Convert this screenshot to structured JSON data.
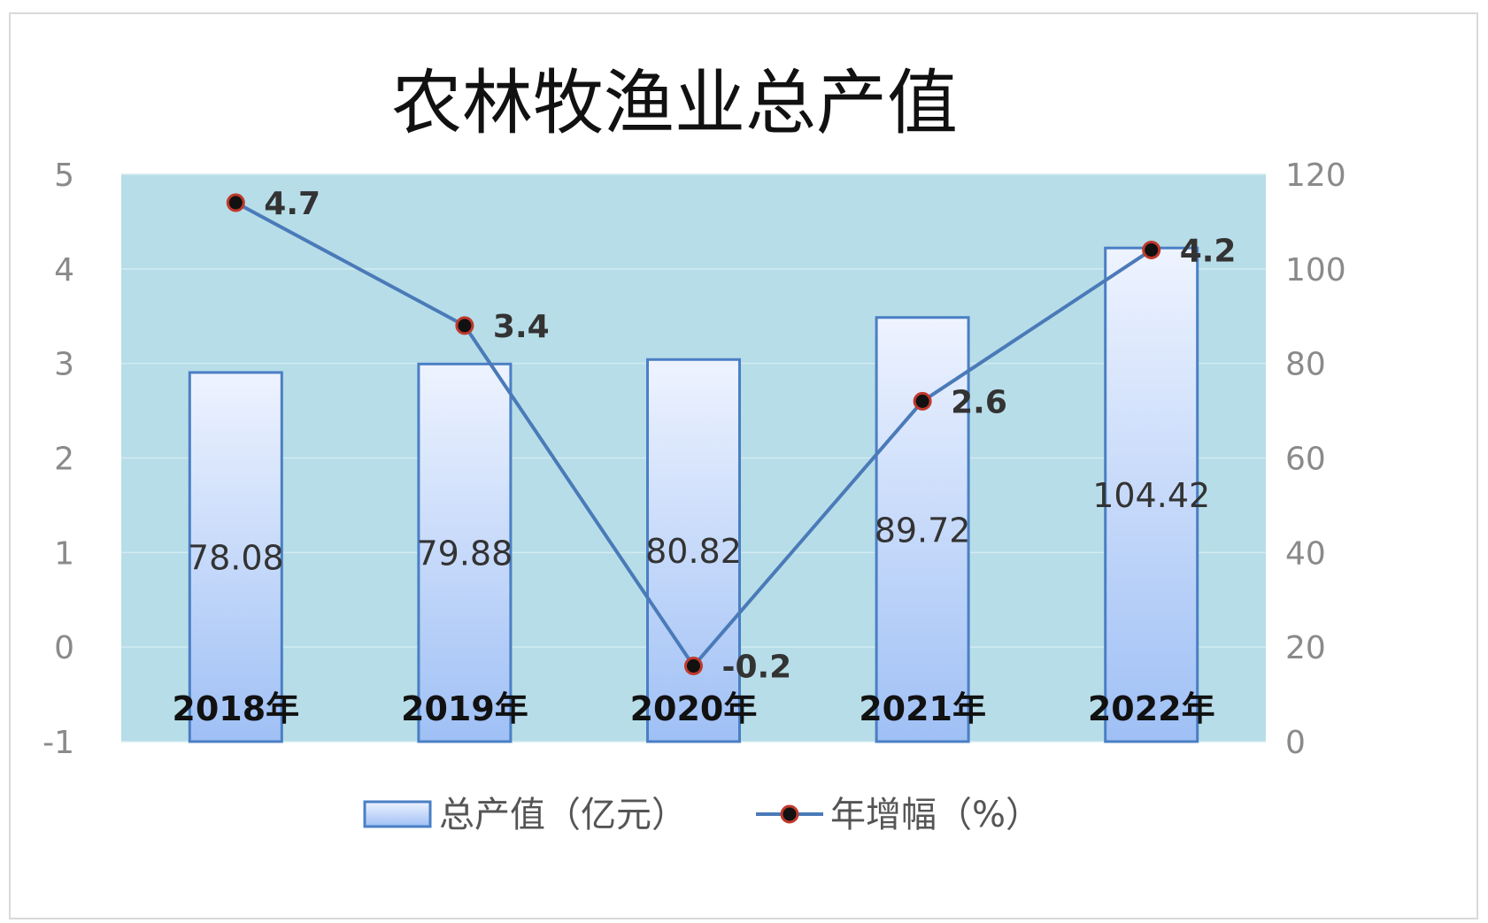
{
  "chart_data": {
    "type": "bar+line",
    "title": "农林牧渔业总产值",
    "categories": [
      "2018年",
      "2019年",
      "2020年",
      "2021年",
      "2022年"
    ],
    "series": [
      {
        "name": "总产值（亿元）",
        "type": "bar",
        "axis": "right",
        "values": [
          78.08,
          79.88,
          80.82,
          89.72,
          104.42
        ],
        "labels": [
          "78.08",
          "79.88",
          "80.82",
          "89.72",
          "104.42"
        ]
      },
      {
        "name": "年增幅（%）",
        "type": "line",
        "axis": "left",
        "values": [
          4.7,
          3.4,
          -0.2,
          2.6,
          4.2
        ],
        "labels": [
          "4.7",
          "3.4",
          "-0.2",
          "2.6",
          "4.2"
        ]
      }
    ],
    "left_axis": {
      "min": -1,
      "max": 5,
      "ticks": [
        "-1",
        "0",
        "1",
        "2",
        "3",
        "4",
        "5"
      ]
    },
    "right_axis": {
      "min": 0,
      "max": 120,
      "ticks": [
        "0",
        "20",
        "40",
        "60",
        "80",
        "100",
        "120"
      ]
    },
    "legend_position": "bottom",
    "grid": true,
    "colors": {
      "plot_background": "#b7dde8",
      "bar_fill_top": "#eef3ff",
      "bar_fill_bottom": "#9fc0f5",
      "bar_stroke": "#4a7fc4",
      "line": "#4a7ab8",
      "marker_fill": "#111111",
      "marker_stroke": "#c0392b"
    }
  }
}
